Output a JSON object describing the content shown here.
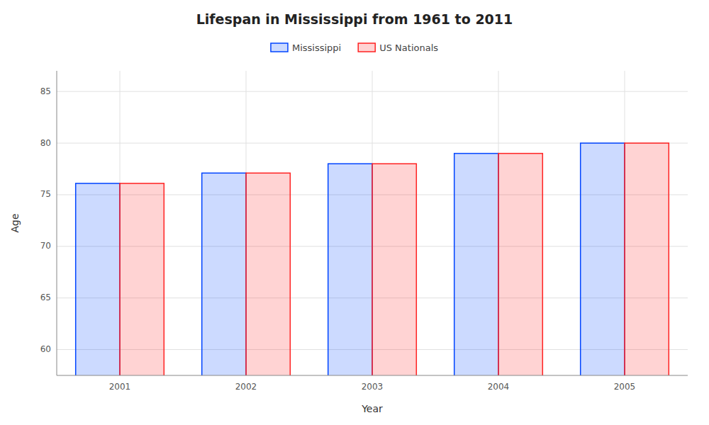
{
  "chart_data": {
    "type": "bar",
    "title": "Lifespan in Mississippi from 1961 to 2011",
    "x_label": "Year",
    "y_label": "Age",
    "categories": [
      "2001",
      "2002",
      "2003",
      "2004",
      "2005"
    ],
    "series": [
      {
        "name": "Mississippi",
        "color": "#0044ff",
        "values": [
          76.1,
          77.1,
          78.0,
          79.0,
          80.0
        ]
      },
      {
        "name": "US Nationals",
        "color": "#ff2222",
        "values": [
          76.1,
          77.1,
          78.0,
          79.0,
          80.0
        ]
      }
    ],
    "ylim": [
      57.5,
      87
    ],
    "yticks": [
      60,
      65,
      70,
      75,
      80,
      85
    ],
    "grid": true,
    "legend": "top"
  }
}
